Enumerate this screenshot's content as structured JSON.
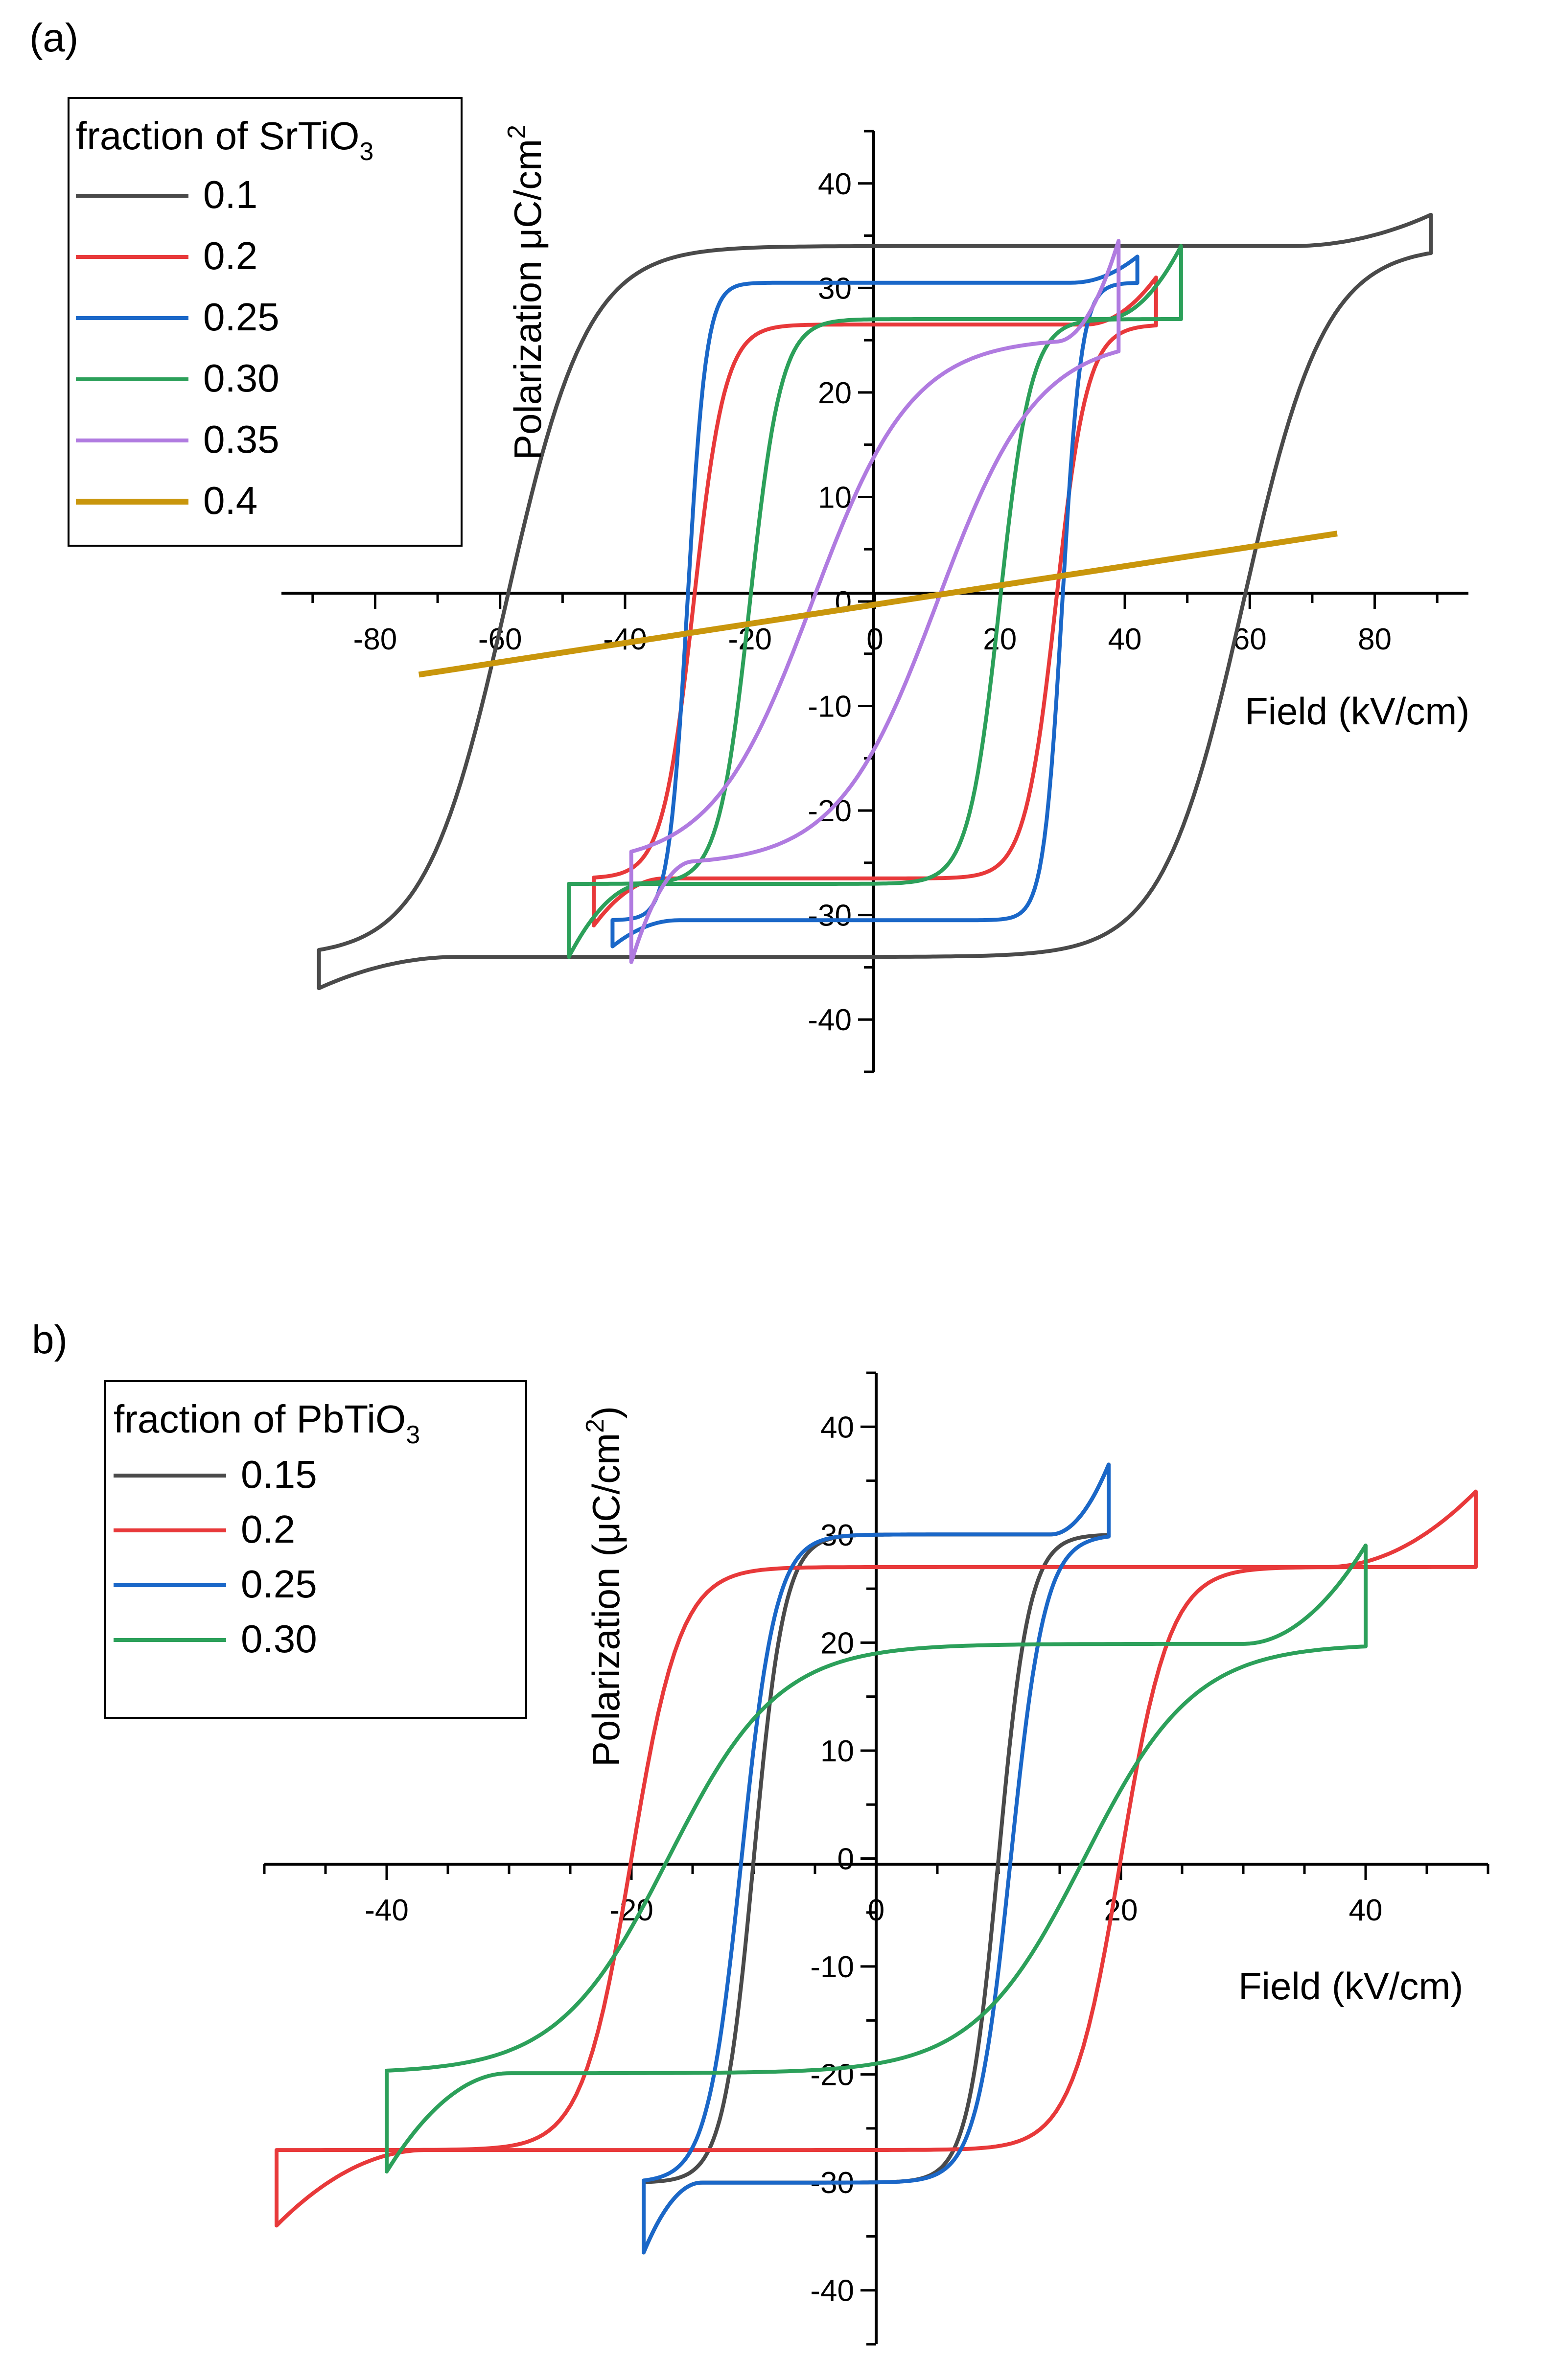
{
  "chart_data": [
    {
      "type": "line",
      "panel_label": "(a)",
      "xlabel": "Field (kV/cm)",
      "ylabel": "Polarization μC/cm",
      "ylabel_sup": "2",
      "xlim": [
        -95,
        95
      ],
      "ylim": [
        -45,
        45
      ],
      "xticks": [
        -80,
        -60,
        -40,
        -20,
        0,
        20,
        40,
        60,
        80
      ],
      "yticks": [
        -40,
        -30,
        -20,
        -10,
        0,
        10,
        20,
        30,
        40
      ],
      "legend_title": "fraction of SrTiO",
      "legend_title_sub": "3",
      "legend_position": "top-left",
      "series": [
        {
          "name": "0.1",
          "color": "#4a4a4a",
          "type": "loop",
          "ec": 59,
          "pr": 34,
          "emax": 89,
          "pmax": 37,
          "k": 13
        },
        {
          "name": "0.2",
          "color": "#e8393a",
          "type": "loop",
          "ec": 29,
          "pr": 26.5,
          "emax": 45,
          "pmax": 31,
          "k": 5
        },
        {
          "name": "0.25",
          "color": "#1a67c8",
          "type": "loop",
          "ec": 30,
          "pr": 30.5,
          "emax": 42,
          "pmax": 33,
          "k": 3
        },
        {
          "name": "0.30",
          "color": "#2ca05a",
          "type": "loop",
          "ec": 20,
          "pr": 27,
          "emax": 49,
          "pmax": 34,
          "k": 5
        },
        {
          "name": "0.35",
          "color": "#b07be0",
          "type": "loop",
          "ec": 10,
          "pr": 14,
          "emax": 39,
          "pmax": 34.5,
          "k": 16
        },
        {
          "name": "0.4",
          "color": "#c9960c",
          "type": "linear",
          "x": [
            -73,
            74
          ],
          "y": [
            -7,
            6.5
          ]
        }
      ]
    },
    {
      "type": "line",
      "panel_label": "b)",
      "xlabel": "Field (kV/cm)",
      "ylabel": "Polarization (μC/cm",
      "ylabel_sup": "2",
      "ylabel_end": ")",
      "xlim": [
        -50,
        50
      ],
      "ylim": [
        -45,
        45
      ],
      "xticks": [
        -40,
        -20,
        0,
        20,
        40
      ],
      "yticks": [
        -40,
        -30,
        -20,
        -10,
        0,
        10,
        20,
        30,
        40
      ],
      "legend_title": "fraction of PbTiO",
      "legend_title_sub": "3",
      "legend_position": "top-left",
      "series": [
        {
          "name": "0.15",
          "color": "#4a4a4a",
          "type": "loop",
          "ec": 10,
          "pr": 30,
          "emax": 19,
          "pmax": 36.5,
          "k": 2.5
        },
        {
          "name": "0.2",
          "color": "#e8393a",
          "type": "loop",
          "ec": 20,
          "pr": 27,
          "emax": 49,
          "pmax": 34,
          "k": 4
        },
        {
          "name": "0.25",
          "color": "#1a67c8",
          "type": "loop",
          "ec": 11,
          "pr": 30,
          "emax": 19,
          "pmax": 36.5,
          "k": 2.8
        },
        {
          "name": "0.30",
          "color": "#2ca05a",
          "type": "loop",
          "ec": 17,
          "pr": 19,
          "emax": 40,
          "pmax": 29,
          "k": 9
        }
      ]
    }
  ]
}
